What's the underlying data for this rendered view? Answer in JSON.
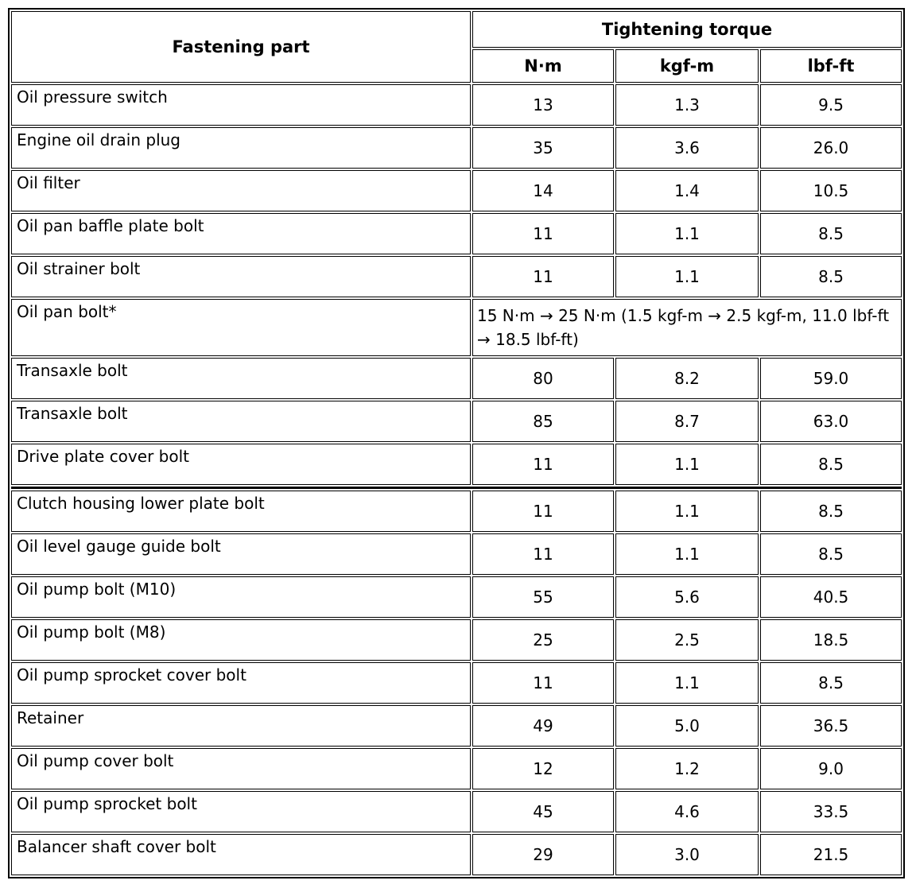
{
  "page": {
    "background_color": "#ffffff",
    "border_color": "#000000",
    "text_color": "#000000"
  },
  "table": {
    "header": {
      "part": "Fastening part",
      "torque": "Tightening torque",
      "units": [
        "N·m",
        "kgf-m",
        "lbf-ft"
      ]
    },
    "rows": [
      {
        "part": "Oil pressure switch",
        "values": [
          "13",
          "1.3",
          "9.5"
        ]
      },
      {
        "part": "Engine oil drain plug",
        "values": [
          "35",
          "3.6",
          "26.0"
        ]
      },
      {
        "part": "Oil filter",
        "values": [
          "14",
          "1.4",
          "10.5"
        ]
      },
      {
        "part": "Oil pan baffle plate bolt",
        "values": [
          "11",
          "1.1",
          "8.5"
        ]
      },
      {
        "part": "Oil strainer bolt",
        "values": [
          "11",
          "1.1",
          "8.5"
        ]
      },
      {
        "part": "Oil pan bolt*",
        "merged": "15 N·m → 25 N·m (1.5 kgf-m → 2.5 kgf-m, 11.0 lbf-ft → 18.5 lbf-ft)"
      },
      {
        "part": "Transaxle bolt",
        "values": [
          "80",
          "8.2",
          "59.0"
        ]
      },
      {
        "part": "Transaxle bolt",
        "values": [
          "85",
          "8.7",
          "63.0"
        ]
      },
      {
        "part": "Drive plate cover bolt",
        "values": [
          "11",
          "1.1",
          "8.5"
        ]
      },
      {
        "part": "Clutch housing lower plate bolt",
        "values": [
          "11",
          "1.1",
          "8.5"
        ]
      },
      {
        "part": "Oil level gauge guide bolt",
        "values": [
          "11",
          "1.1",
          "8.5"
        ]
      },
      {
        "part": "Oil pump bolt (M10)",
        "values": [
          "55",
          "5.6",
          "40.5"
        ]
      },
      {
        "part": "Oil pump bolt (M8)",
        "values": [
          "25",
          "2.5",
          "18.5"
        ]
      },
      {
        "part": "Oil pump sprocket cover bolt",
        "values": [
          "11",
          "1.1",
          "8.5"
        ]
      },
      {
        "part": "Retainer",
        "values": [
          "49",
          "5.0",
          "36.5"
        ]
      },
      {
        "part": "Oil pump cover bolt",
        "values": [
          "12",
          "1.2",
          "9.0"
        ]
      },
      {
        "part": "Oil pump sprocket bolt",
        "values": [
          "45",
          "4.6",
          "33.5"
        ]
      },
      {
        "part": "Balancer shaft cover bolt",
        "values": [
          "29",
          "3.0",
          "21.5"
        ]
      }
    ],
    "separator_after_row_index": 8
  }
}
